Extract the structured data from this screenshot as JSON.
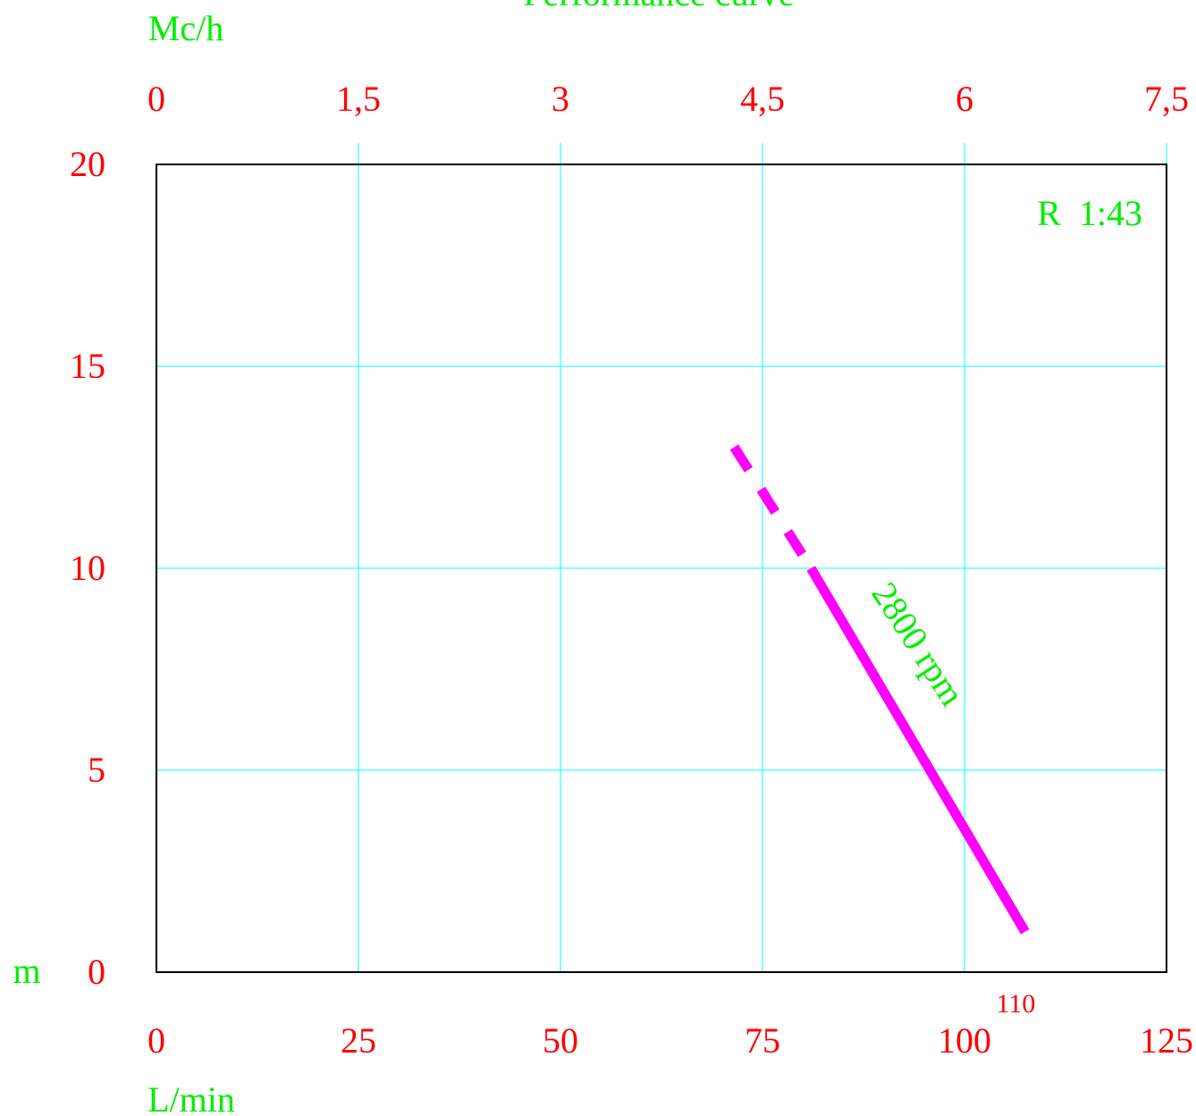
{
  "chart_data": {
    "type": "line",
    "title": "Performance curve",
    "xlabel": "L/min",
    "x2label": "Mc/h",
    "ylabel": "m",
    "xlim": [
      0,
      125
    ],
    "ylim": [
      0,
      20
    ],
    "x_ticks": [
      "0",
      "25",
      "50",
      "75",
      "100",
      "125"
    ],
    "x_tick_values": [
      0,
      25,
      50,
      75,
      100,
      125
    ],
    "x2_ticks": [
      "0",
      "1,5",
      "3",
      "4,5",
      "6",
      "7,5"
    ],
    "y_ticks": [
      "0",
      "5",
      "10",
      "15",
      "20"
    ],
    "y_tick_values": [
      0,
      5,
      10,
      15,
      20
    ],
    "grid": true,
    "model_label": "R  1:43",
    "series": [
      {
        "name": "2800 rpm",
        "color": "#ff00ff",
        "dashed_segment": {
          "x": [
            71.5,
            81
          ],
          "y": [
            13,
            10
          ]
        },
        "solid_segment": {
          "x": [
            81,
            107.5
          ],
          "y": [
            10,
            1
          ]
        }
      }
    ],
    "end_marker_label": "110",
    "end_marker_x": 110
  },
  "colors": {
    "tick_text": "#ff0000",
    "label_text": "#00ee00",
    "grid": "#00ffff",
    "frame": "#000000",
    "curve": "#ff00ff"
  }
}
